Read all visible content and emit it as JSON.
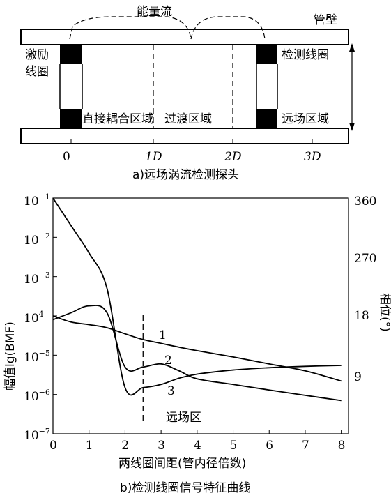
{
  "part_a": {
    "energy_flow": "能量流",
    "pipe_wall": "管壁",
    "excite_coil": "激励线圈",
    "detect_coil": "检测线圈",
    "direct_zone": "直接耦合区域",
    "transition_zone": "过渡区域",
    "far_zone": "远场区域",
    "x_ticks": [
      "0",
      "1D",
      "2D",
      "3D"
    ],
    "caption": "a)远场涡流检测探头"
  },
  "part_b": {
    "left_axis_ticks": [
      "10^-1",
      "10^-2",
      "10^-3",
      "10^-4",
      "10^-5",
      "10^-6",
      "10^-7"
    ],
    "left_axis_label": "幅值lg(BMF)",
    "right_axis_ticks": [
      "360",
      "270",
      "18",
      "9"
    ],
    "right_axis_label": "相位(°)",
    "x_ticks": [
      "0",
      "1",
      "2",
      "3",
      "4",
      "5",
      "6",
      "7",
      "8"
    ],
    "x_label": "两线圈间距(管内径倍数)",
    "far_field_label": "远场区",
    "curve_labels": [
      "1",
      "2",
      "3"
    ],
    "caption": "b)检测线圈信号特征曲线",
    "chart_data": {
      "type": "line",
      "x": [
        0,
        0.5,
        1,
        1.5,
        2,
        2.5,
        3,
        3.5,
        4,
        5,
        6,
        7,
        8
      ],
      "series": [
        {
          "name": "1",
          "values": [
            0.0001,
            7e-05,
            6e-05,
            5e-05,
            3.5e-05,
            2.5e-05,
            2e-05,
            1.6e-05,
            1.3e-05,
            9e-06,
            6e-06,
            4e-06,
            2.2e-06
          ]
        },
        {
          "name": "2",
          "values": [
            8e-05,
            0.00012,
            0.00018,
            0.00012,
            5e-06,
            5e-06,
            6e-06,
            4e-06,
            2.5e-06,
            1.8e-06,
            1.3e-06,
            9.5e-07,
            7e-07
          ]
        },
        {
          "name": "3",
          "values": [
            0.1,
            0.02,
            0.004,
            0.0005,
            1.5e-06,
            1.5e-06,
            1.8e-06,
            2.6e-06,
            3.3e-06,
            4.2e-06,
            4.8e-06,
            5.2e-06,
            5.5e-06
          ]
        }
      ],
      "ylim": [
        1e-07,
        0.1
      ],
      "xlim": [
        0,
        8.2
      ],
      "far_field_start": 2.5
    }
  }
}
